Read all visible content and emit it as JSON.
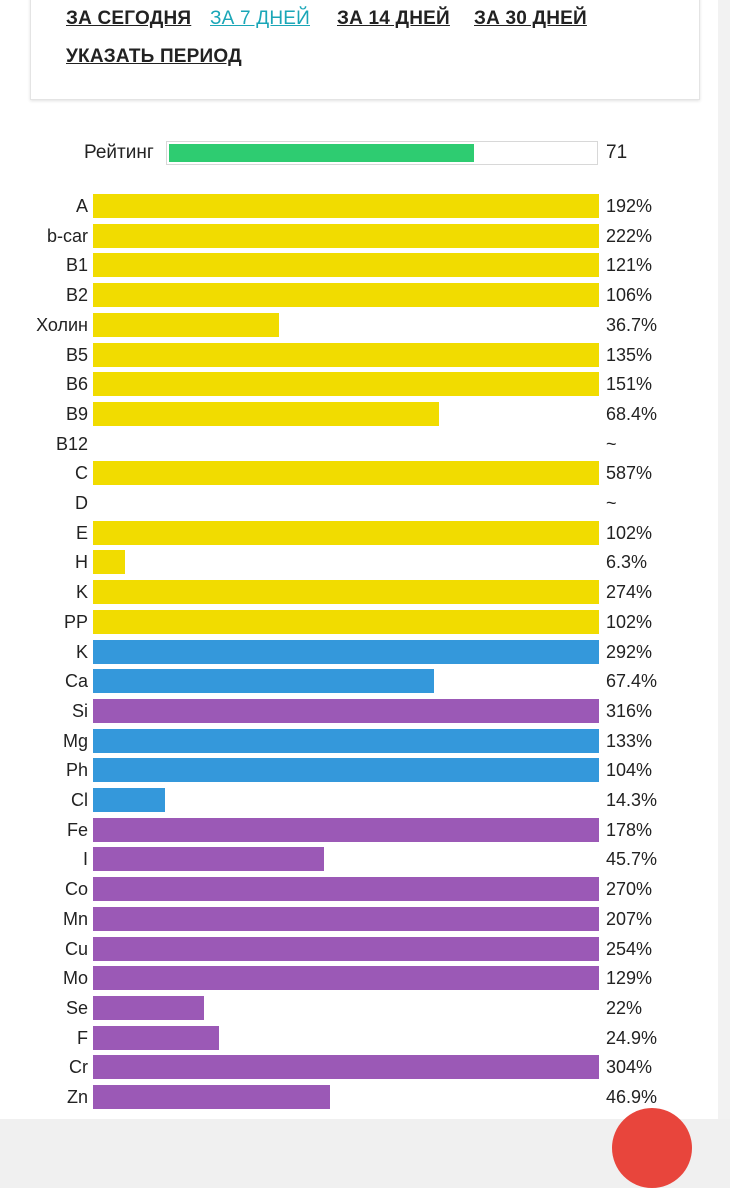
{
  "periods": {
    "today": "ЗА СЕГОДНЯ",
    "week": "ЗА 7 ДНЕЙ",
    "two_weeks": "ЗА 14 ДНЕЙ",
    "month": "ЗА 30 ДНЕЙ",
    "custom": "УКАЗАТЬ ПЕРИОД",
    "active": "week"
  },
  "rating": {
    "label": "Рейтинг",
    "value": "71",
    "fill_fraction": 0.71,
    "color": "#2ecc71"
  },
  "colors": {
    "vitamin": "#f1dc00",
    "macro": "#3498db",
    "micro": "#9b59b6",
    "accent": "#e8453c",
    "link_active": "#1aa6b7"
  },
  "nutrients": [
    {
      "name": "A",
      "value": "192%",
      "pct": 192,
      "group": "vitamin"
    },
    {
      "name": "b-car",
      "value": "222%",
      "pct": 222,
      "group": "vitamin"
    },
    {
      "name": "B1",
      "value": "121%",
      "pct": 121,
      "group": "vitamin"
    },
    {
      "name": "B2",
      "value": "106%",
      "pct": 106,
      "group": "vitamin"
    },
    {
      "name": "Холин",
      "value": "36.7%",
      "pct": 36.7,
      "group": "vitamin"
    },
    {
      "name": "B5",
      "value": "135%",
      "pct": 135,
      "group": "vitamin"
    },
    {
      "name": "B6",
      "value": "151%",
      "pct": 151,
      "group": "vitamin"
    },
    {
      "name": "B9",
      "value": "68.4%",
      "pct": 68.4,
      "group": "vitamin"
    },
    {
      "name": "B12",
      "value": "~",
      "pct": 0,
      "group": "vitamin"
    },
    {
      "name": "C",
      "value": "587%",
      "pct": 587,
      "group": "vitamin"
    },
    {
      "name": "D",
      "value": "~",
      "pct": 0,
      "group": "vitamin"
    },
    {
      "name": "E",
      "value": "102%",
      "pct": 102,
      "group": "vitamin"
    },
    {
      "name": "H",
      "value": "6.3%",
      "pct": 6.3,
      "group": "vitamin"
    },
    {
      "name": "K",
      "value": "274%",
      "pct": 274,
      "group": "vitamin"
    },
    {
      "name": "PP",
      "value": "102%",
      "pct": 102,
      "group": "vitamin"
    },
    {
      "name": "K",
      "value": "292%",
      "pct": 292,
      "group": "macro"
    },
    {
      "name": "Ca",
      "value": "67.4%",
      "pct": 67.4,
      "group": "macro"
    },
    {
      "name": "Si",
      "value": "316%",
      "pct": 316,
      "group": "micro"
    },
    {
      "name": "Mg",
      "value": "133%",
      "pct": 133,
      "group": "macro"
    },
    {
      "name": "Ph",
      "value": "104%",
      "pct": 104,
      "group": "macro"
    },
    {
      "name": "Cl",
      "value": "14.3%",
      "pct": 14.3,
      "group": "macro"
    },
    {
      "name": "Fe",
      "value": "178%",
      "pct": 178,
      "group": "micro"
    },
    {
      "name": "I",
      "value": "45.7%",
      "pct": 45.7,
      "group": "micro"
    },
    {
      "name": "Co",
      "value": "270%",
      "pct": 270,
      "group": "micro"
    },
    {
      "name": "Mn",
      "value": "207%",
      "pct": 207,
      "group": "micro"
    },
    {
      "name": "Cu",
      "value": "254%",
      "pct": 254,
      "group": "micro"
    },
    {
      "name": "Mo",
      "value": "129%",
      "pct": 129,
      "group": "micro"
    },
    {
      "name": "Se",
      "value": "22%",
      "pct": 22,
      "group": "micro"
    },
    {
      "name": "F",
      "value": "24.9%",
      "pct": 24.9,
      "group": "micro"
    },
    {
      "name": "Cr",
      "value": "304%",
      "pct": 304,
      "group": "micro"
    },
    {
      "name": "Zn",
      "value": "46.9%",
      "pct": 46.9,
      "group": "micro"
    }
  ]
}
